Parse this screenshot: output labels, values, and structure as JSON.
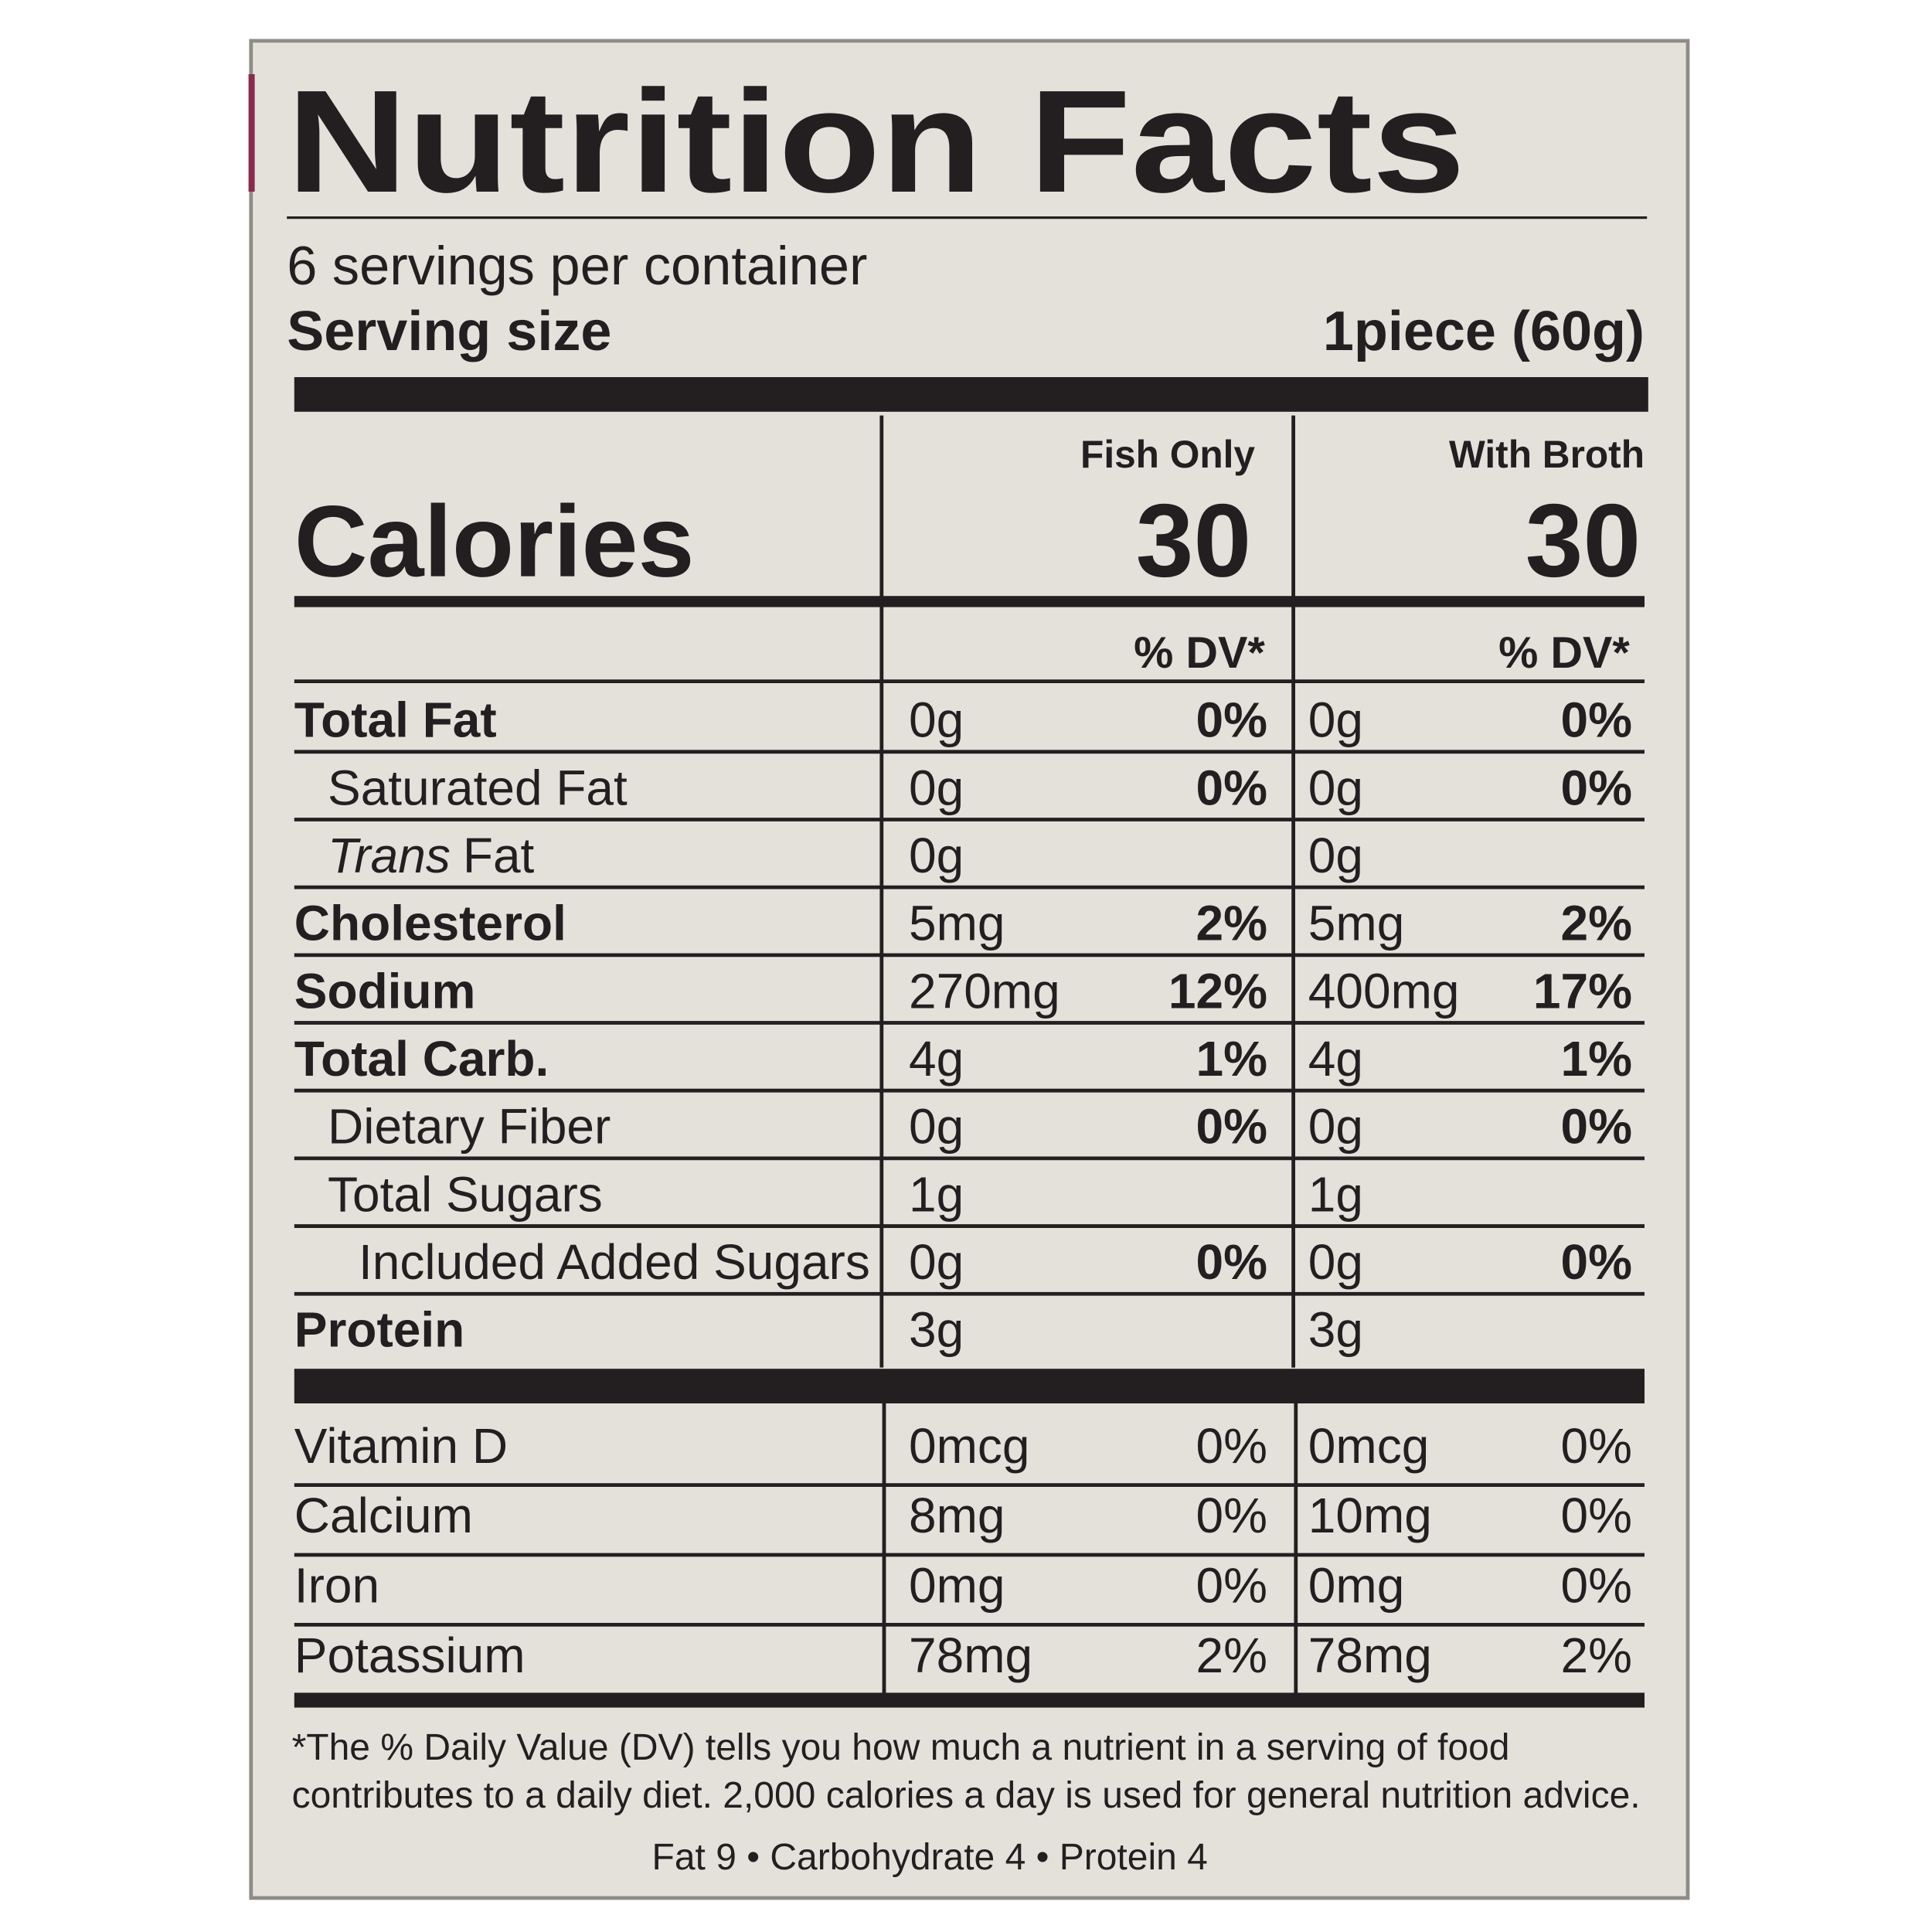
{
  "title": "Nutrition Facts",
  "servings": "6 servings per container",
  "serving_size": {
    "label": "Serving size",
    "value": "1piece (60g)"
  },
  "calories_label": "Calories",
  "columns": [
    {
      "name": "Fish Only",
      "calories": 30,
      "dv_header": "% DV*"
    },
    {
      "name": "With Broth",
      "calories": 30,
      "dv_header": "% DV*"
    }
  ],
  "nutrients": [
    {
      "label": "Total Fat",
      "bold": true,
      "level": 0,
      "values": [
        [
          "0g",
          "0%"
        ],
        [
          "0g",
          "0%"
        ]
      ]
    },
    {
      "label": "Saturated Fat",
      "bold": false,
      "level": 1,
      "values": [
        [
          "0g",
          "0%"
        ],
        [
          "0g",
          "0%"
        ]
      ]
    },
    {
      "label_italic": "Trans",
      "label": "Fat",
      "bold": false,
      "level": 1,
      "values": [
        [
          "0g"
        ],
        [
          "0g"
        ]
      ]
    },
    {
      "label": "Cholesterol",
      "bold": true,
      "level": 0,
      "values": [
        [
          "5mg",
          "2%"
        ],
        [
          "5mg",
          "2%"
        ]
      ]
    },
    {
      "label": "Sodium",
      "bold": true,
      "level": 0,
      "values": [
        [
          "270mg",
          "12%"
        ],
        [
          "400mg",
          "17%"
        ]
      ]
    },
    {
      "label": "Total Carb.",
      "bold": true,
      "level": 0,
      "values": [
        [
          "4g",
          "1%"
        ],
        [
          "4g",
          "1%"
        ]
      ]
    },
    {
      "label": "Dietary Fiber",
      "bold": false,
      "level": 1,
      "values": [
        [
          "0g",
          "0%"
        ],
        [
          "0g",
          "0%"
        ]
      ]
    },
    {
      "label": "Total Sugars",
      "bold": false,
      "level": 1,
      "values": [
        [
          "1g"
        ],
        [
          "1g"
        ]
      ]
    },
    {
      "label": "Included Added Sugars",
      "bold": false,
      "level": 2,
      "values": [
        [
          "0g",
          "0%"
        ],
        [
          "0g",
          "0%"
        ]
      ]
    },
    {
      "label": "Protein",
      "bold": true,
      "level": 0,
      "values": [
        [
          "3g"
        ],
        [
          "3g"
        ]
      ]
    }
  ],
  "vitamins": [
    {
      "label": "Vitamin D",
      "values": [
        [
          "0mcg",
          "0%"
        ],
        [
          "0mcg",
          "0%"
        ]
      ]
    },
    {
      "label": "Calcium",
      "values": [
        [
          "8mg",
          "0%"
        ],
        [
          "10mg",
          "0%"
        ]
      ]
    },
    {
      "label": "Iron",
      "values": [
        [
          "0mg",
          "0%"
        ],
        [
          "0mg",
          "0%"
        ]
      ]
    },
    {
      "label": "Potassium",
      "values": [
        [
          "78mg",
          "2%"
        ],
        [
          "78mg",
          "2%"
        ]
      ]
    }
  ],
  "footnote": "*The % Daily Value (DV) tells you how much a nutrient in a serving of food contributes to a daily diet. 2,000 calories a day is used for general nutrition advice.",
  "calorie_guide": "Fat 9 • Carbohydrate 4 • Protein 4"
}
